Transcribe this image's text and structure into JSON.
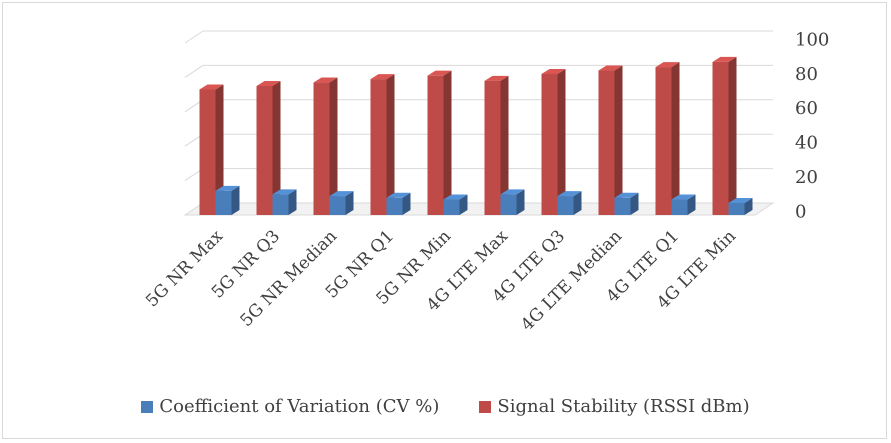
{
  "chart_data": {
    "type": "bar",
    "categories": [
      "5G NR Max",
      "5G NR Q3",
      "5G NR Median",
      "5G NR Q1",
      "5G NR Min",
      "4G LTE Max",
      "4G LTE Q3",
      "4G LTE Median",
      "4G LTE Q1",
      "4G LTE Min"
    ],
    "series": [
      {
        "name": "Coefficient of Variation (CV %)",
        "color": "#4a7ebb",
        "values": [
          14,
          12,
          11,
          10,
          9,
          12,
          11,
          10,
          9,
          7
        ]
      },
      {
        "name": "Signal Stability (RSSI dBm)",
        "color": "#be4b48",
        "values": [
          73,
          75,
          77,
          79,
          81,
          78,
          82,
          84,
          86,
          89
        ]
      }
    ],
    "ylim": [
      0,
      100
    ],
    "yticks": [
      0,
      20,
      40,
      60,
      80,
      100
    ],
    "grid": true,
    "legend_position": "bottom"
  }
}
